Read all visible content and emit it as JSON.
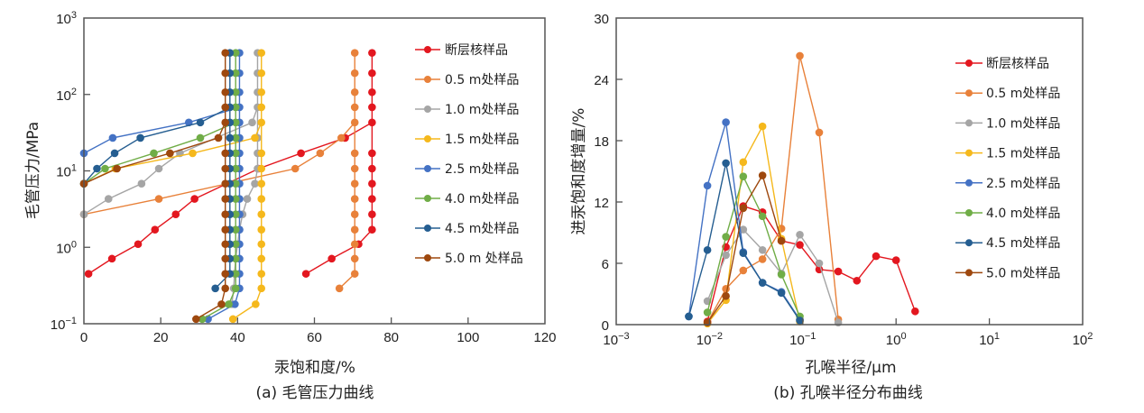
{
  "chart_data": [
    {
      "type": "line",
      "caption": "(a) 毛管压力曲线",
      "xlabel": "汞饱和度/%",
      "ylabel": "毛管压力/MPa",
      "xscale": "linear",
      "yscale": "log",
      "xlim": [
        0,
        120
      ],
      "ylim": [
        0.1,
        1000
      ],
      "xticks": [
        "0",
        "20",
        "40",
        "60",
        "80",
        "100",
        "120"
      ],
      "xtick_values": [
        0,
        20,
        40,
        60,
        80,
        100,
        120
      ],
      "yticks": [
        {
          "base": "10",
          "exp": "3",
          "value": 1000
        },
        {
          "base": "10",
          "exp": "2",
          "value": 100
        },
        {
          "base": "10",
          "exp": "1",
          "value": 10
        },
        {
          "base": "10",
          "exp": "0",
          "value": 1
        },
        {
          "base": "10",
          "exp": "−1",
          "value": 0.1
        }
      ],
      "legend_position": "top-right",
      "series": [
        {
          "name": "断层核样品",
          "color": "#e3171f",
          "points": [
            [
              1.2,
              0.45
            ],
            [
              7.3,
              0.71
            ],
            [
              14.1,
              1.1
            ],
            [
              18.5,
              1.7
            ],
            [
              23.9,
              2.7
            ],
            [
              28.8,
              4.3
            ],
            [
              45.5,
              10.7
            ],
            [
              56.5,
              17
            ],
            [
              68,
              27
            ],
            [
              75,
              43
            ],
            [
              75,
              68
            ],
            [
              75,
              107
            ],
            [
              75,
              190
            ],
            [
              75,
              350
            ],
            [
              75,
              17
            ],
            [
              75,
              10.7
            ],
            [
              75,
              6.8
            ],
            [
              75,
              4.3
            ],
            [
              75,
              2.7
            ],
            [
              75,
              1.7
            ],
            [
              71.5,
              1.1
            ],
            [
              64.5,
              0.71
            ],
            [
              57.8,
              0.45
            ]
          ]
        },
        {
          "name": "0.5 m处样品",
          "color": "#e8813a",
          "points": [
            [
              0,
              2.7
            ],
            [
              19.5,
              4.3
            ],
            [
              55,
              10.7
            ],
            [
              61.5,
              17
            ],
            [
              67,
              27
            ],
            [
              70.5,
              43
            ],
            [
              70.5,
              68
            ],
            [
              70.5,
              107
            ],
            [
              70.5,
              190
            ],
            [
              70.5,
              350
            ],
            [
              70.5,
              17
            ],
            [
              70.5,
              10.7
            ],
            [
              70.5,
              6.8
            ],
            [
              70.5,
              4.3
            ],
            [
              70.5,
              2.7
            ],
            [
              70.5,
              1.7
            ],
            [
              70.5,
              1.1
            ],
            [
              70.5,
              0.71
            ],
            [
              70.5,
              0.45
            ],
            [
              66.5,
              0.29
            ]
          ]
        },
        {
          "name": "1.0 m处样品",
          "color": "#a5a5a5",
          "points": [
            [
              0,
              2.7
            ],
            [
              6.4,
              4.3
            ],
            [
              15,
              6.8
            ],
            [
              19.5,
              10.7
            ],
            [
              25,
              17
            ],
            [
              43.8,
              43
            ],
            [
              45.2,
              68
            ],
            [
              45.2,
              107
            ],
            [
              45.2,
              190
            ],
            [
              45.2,
              350
            ],
            [
              45.2,
              27
            ],
            [
              45.2,
              17
            ],
            [
              45.2,
              10.7
            ],
            [
              44.5,
              6.8
            ],
            [
              42.5,
              4.3
            ],
            [
              41.3,
              2.7
            ],
            [
              40.5,
              1.7
            ],
            [
              40,
              1.1
            ],
            [
              39.5,
              0.71
            ],
            [
              39.2,
              0.45
            ],
            [
              39,
              0.29
            ],
            [
              38.5,
              0.18
            ]
          ]
        },
        {
          "name": "1.5 m处样品",
          "color": "#f5b81c",
          "points": [
            [
              0,
              6.8
            ],
            [
              8.2,
              10.7
            ],
            [
              28.3,
              17
            ],
            [
              44.5,
              27
            ],
            [
              46.2,
              43
            ],
            [
              46.2,
              68
            ],
            [
              46.2,
              107
            ],
            [
              46.2,
              190
            ],
            [
              46.2,
              350
            ],
            [
              46.2,
              17
            ],
            [
              46.2,
              10.7
            ],
            [
              46.2,
              6.8
            ],
            [
              46.2,
              4.3
            ],
            [
              46.2,
              2.7
            ],
            [
              46.2,
              1.7
            ],
            [
              46.2,
              1.1
            ],
            [
              46.2,
              0.71
            ],
            [
              46.2,
              0.45
            ],
            [
              46.2,
              0.29
            ],
            [
              44.7,
              0.18
            ],
            [
              38.8,
              0.115
            ]
          ]
        },
        {
          "name": "2.5 m处样品",
          "color": "#4472c4",
          "points": [
            [
              0,
              17
            ],
            [
              7.5,
              27
            ],
            [
              27.3,
              43
            ],
            [
              40.5,
              68
            ],
            [
              40.5,
              107
            ],
            [
              40.5,
              190
            ],
            [
              40.5,
              350
            ],
            [
              40.5,
              43
            ],
            [
              40.5,
              27
            ],
            [
              40.5,
              17
            ],
            [
              40.5,
              10.7
            ],
            [
              40.5,
              6.8
            ],
            [
              40.5,
              4.3
            ],
            [
              40.5,
              2.7
            ],
            [
              40.5,
              1.7
            ],
            [
              40.5,
              1.1
            ],
            [
              40.5,
              0.71
            ],
            [
              40.5,
              0.45
            ],
            [
              40.5,
              0.29
            ],
            [
              39.3,
              0.18
            ],
            [
              32.3,
              0.115
            ]
          ]
        },
        {
          "name": "4.0 m处样品",
          "color": "#70ad47",
          "points": [
            [
              0,
              6.8
            ],
            [
              5.5,
              10.7
            ],
            [
              18.2,
              17
            ],
            [
              30.3,
              27
            ],
            [
              39.5,
              43
            ],
            [
              39.5,
              68
            ],
            [
              39.5,
              107
            ],
            [
              39.5,
              190
            ],
            [
              39.5,
              350
            ],
            [
              39.5,
              27
            ],
            [
              39.5,
              17
            ],
            [
              39.5,
              10.7
            ],
            [
              39.5,
              6.8
            ],
            [
              39.5,
              4.3
            ],
            [
              39.5,
              2.7
            ],
            [
              39.5,
              1.7
            ],
            [
              39.5,
              1.1
            ],
            [
              39.5,
              0.71
            ],
            [
              39.5,
              0.45
            ],
            [
              39.5,
              0.29
            ],
            [
              37.7,
              0.18
            ],
            [
              30.8,
              0.115
            ]
          ]
        },
        {
          "name": "4.5 m处样品",
          "color": "#255e91",
          "points": [
            [
              0,
              6.8
            ],
            [
              3.4,
              10.7
            ],
            [
              8,
              17
            ],
            [
              14.7,
              27
            ],
            [
              30.3,
              43
            ],
            [
              38,
              68
            ],
            [
              38,
              107
            ],
            [
              38,
              190
            ],
            [
              38,
              350
            ],
            [
              38,
              43
            ],
            [
              38,
              27
            ],
            [
              38,
              17
            ],
            [
              38,
              10.7
            ],
            [
              38,
              6.8
            ],
            [
              38,
              4.3
            ],
            [
              38,
              2.7
            ],
            [
              38,
              1.7
            ],
            [
              38,
              1.1
            ],
            [
              38,
              0.71
            ],
            [
              38,
              0.45
            ],
            [
              34.2,
              0.29
            ]
          ]
        },
        {
          "name": "5.0 m 处样品",
          "color": "#9e480e",
          "points": [
            [
              0,
              6.8
            ],
            [
              8.6,
              10.7
            ],
            [
              22.4,
              17
            ],
            [
              35,
              27
            ],
            [
              36.8,
              43
            ],
            [
              36.8,
              68
            ],
            [
              36.8,
              107
            ],
            [
              36.8,
              190
            ],
            [
              36.8,
              350
            ],
            [
              36.8,
              17
            ],
            [
              36.8,
              10.7
            ],
            [
              36.8,
              6.8
            ],
            [
              36.8,
              4.3
            ],
            [
              36.8,
              2.7
            ],
            [
              36.8,
              1.7
            ],
            [
              36.8,
              1.1
            ],
            [
              36.8,
              0.71
            ],
            [
              36.8,
              0.45
            ],
            [
              36.8,
              0.29
            ],
            [
              35.8,
              0.18
            ],
            [
              29.2,
              0.115
            ]
          ]
        }
      ]
    },
    {
      "type": "line",
      "caption": "(b) 孔喉半径分布曲线",
      "xlabel": "孔喉半径/μm",
      "ylabel": "进汞饱和度增量/%",
      "xscale": "log",
      "yscale": "linear",
      "xlim": [
        0.001,
        100
      ],
      "ylim": [
        0,
        30
      ],
      "xticks": [
        {
          "base": "10",
          "exp": "−3",
          "value": 0.001
        },
        {
          "base": "10",
          "exp": "−2",
          "value": 0.01
        },
        {
          "base": "10",
          "exp": "−1",
          "value": 0.1
        },
        {
          "base": "10",
          "exp": "0",
          "value": 1
        },
        {
          "base": "10",
          "exp": "1",
          "value": 10
        },
        {
          "base": "10",
          "exp": "2",
          "value": 100
        }
      ],
      "yticks": [
        "0",
        "6",
        "12",
        "18",
        "24",
        "30"
      ],
      "ytick_values": [
        0,
        6,
        12,
        18,
        24,
        30
      ],
      "legend_position": "right",
      "series": [
        {
          "name": "断层核样品",
          "color": "#e3171f",
          "points": [
            [
              0.0095,
              0.3
            ],
            [
              0.015,
              7.6
            ],
            [
              0.023,
              11.6
            ],
            [
              0.037,
              11.0
            ],
            [
              0.059,
              8.2
            ],
            [
              0.093,
              7.8
            ],
            [
              0.15,
              5.4
            ],
            [
              0.24,
              5.2
            ],
            [
              0.38,
              4.3
            ],
            [
              0.61,
              6.7
            ],
            [
              1.0,
              6.3
            ],
            [
              1.6,
              1.3
            ]
          ]
        },
        {
          "name": "0.5 m处样品",
          "color": "#e8813a",
          "points": [
            [
              0.0095,
              0.2
            ],
            [
              0.015,
              3.5
            ],
            [
              0.023,
              5.3
            ],
            [
              0.037,
              6.4
            ],
            [
              0.059,
              9.4
            ],
            [
              0.093,
              26.3
            ],
            [
              0.15,
              18.8
            ],
            [
              0.24,
              0.5
            ]
          ]
        },
        {
          "name": "1.0 m处样品",
          "color": "#a5a5a5",
          "points": [
            [
              0.0095,
              2.3
            ],
            [
              0.015,
              6.8
            ],
            [
              0.023,
              9.3
            ],
            [
              0.037,
              7.3
            ],
            [
              0.059,
              5.0
            ],
            [
              0.093,
              8.8
            ],
            [
              0.15,
              6.0
            ],
            [
              0.24,
              0.2
            ]
          ]
        },
        {
          "name": "1.5 m处样品",
          "color": "#f5b81c",
          "points": [
            [
              0.0095,
              0.1
            ],
            [
              0.015,
              2.4
            ],
            [
              0.023,
              15.9
            ],
            [
              0.037,
              19.4
            ],
            [
              0.059,
              8.4
            ],
            [
              0.093,
              0.3
            ]
          ]
        },
        {
          "name": "2.5 m处样品",
          "color": "#4472c4",
          "points": [
            [
              0.006,
              0.8
            ],
            [
              0.0095,
              13.6
            ],
            [
              0.015,
              19.8
            ],
            [
              0.023,
              7.1
            ],
            [
              0.037,
              4.1
            ],
            [
              0.059,
              3.2
            ],
            [
              0.093,
              0.5
            ]
          ]
        },
        {
          "name": "4.0 m处样品",
          "color": "#70ad47",
          "points": [
            [
              0.0095,
              1.2
            ],
            [
              0.015,
              8.6
            ],
            [
              0.023,
              14.5
            ],
            [
              0.037,
              10.6
            ],
            [
              0.059,
              4.9
            ],
            [
              0.093,
              0.8
            ]
          ]
        },
        {
          "name": "4.5 m处样品",
          "color": "#255e91",
          "points": [
            [
              0.006,
              0.8
            ],
            [
              0.0095,
              7.3
            ],
            [
              0.015,
              15.8
            ],
            [
              0.023,
              7.0
            ],
            [
              0.037,
              4.1
            ],
            [
              0.059,
              3.1
            ],
            [
              0.093,
              0.4
            ]
          ]
        },
        {
          "name": "5.0 m处样品",
          "color": "#9e480e",
          "points": [
            [
              0.0095,
              0.2
            ],
            [
              0.015,
              2.8
            ],
            [
              0.023,
              11.4
            ],
            [
              0.037,
              14.6
            ],
            [
              0.059,
              8.2
            ]
          ]
        }
      ]
    }
  ]
}
